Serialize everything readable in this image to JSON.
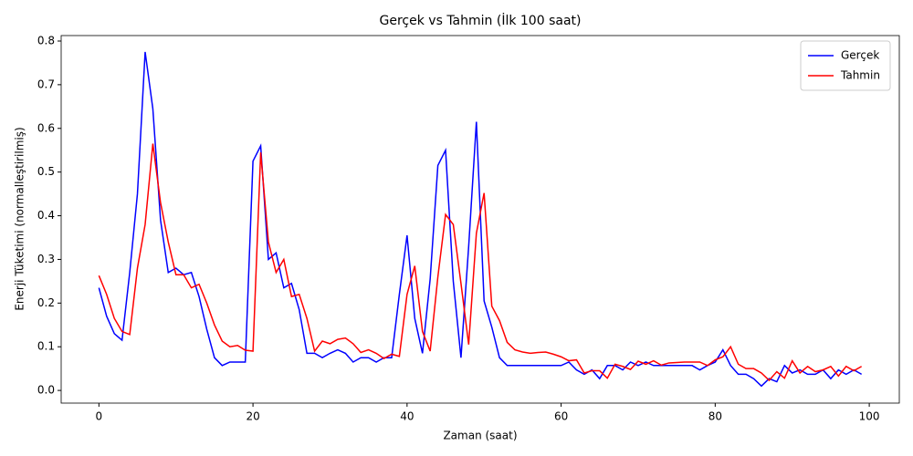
{
  "chart_data": {
    "type": "line",
    "title": "Gerçek vs Tahmin (İlk 100 saat)",
    "x_label": "Zaman (saat)",
    "y_label": "Enerji Tüketimi (normalleştirilmiş)",
    "x": [
      0,
      1,
      2,
      3,
      4,
      5,
      6,
      7,
      8,
      9,
      10,
      11,
      12,
      13,
      14,
      15,
      16,
      17,
      18,
      19,
      20,
      21,
      22,
      23,
      24,
      25,
      26,
      27,
      28,
      29,
      30,
      31,
      32,
      33,
      34,
      35,
      36,
      37,
      38,
      39,
      40,
      41,
      42,
      43,
      44,
      45,
      46,
      47,
      48,
      49,
      50,
      51,
      52,
      53,
      54,
      55,
      56,
      57,
      58,
      59,
      60,
      61,
      62,
      63,
      64,
      65,
      66,
      67,
      68,
      69,
      70,
      71,
      72,
      73,
      74,
      75,
      76,
      77,
      78,
      79,
      80,
      81,
      82,
      83,
      84,
      85,
      86,
      87,
      88,
      89,
      90,
      91,
      92,
      93,
      94,
      95,
      96,
      97,
      98,
      99
    ],
    "series": [
      {
        "name": "Gerçek",
        "color": "#0000ff",
        "values": [
          0.235,
          0.17,
          0.13,
          0.115,
          0.27,
          0.45,
          0.775,
          0.645,
          0.39,
          0.27,
          0.28,
          0.265,
          0.27,
          0.215,
          0.14,
          0.075,
          0.057,
          0.065,
          0.065,
          0.065,
          0.525,
          0.56,
          0.3,
          0.315,
          0.235,
          0.245,
          0.185,
          0.085,
          0.085,
          0.075,
          0.085,
          0.093,
          0.085,
          0.065,
          0.075,
          0.075,
          0.065,
          0.075,
          0.075,
          0.22,
          0.355,
          0.165,
          0.085,
          0.255,
          0.515,
          0.55,
          0.25,
          0.075,
          0.33,
          0.615,
          0.205,
          0.145,
          0.075,
          0.057,
          0.057,
          0.057,
          0.057,
          0.057,
          0.057,
          0.057,
          0.057,
          0.065,
          0.047,
          0.037,
          0.047,
          0.027,
          0.057,
          0.057,
          0.047,
          0.065,
          0.057,
          0.065,
          0.057,
          0.057,
          0.057,
          0.057,
          0.057,
          0.057,
          0.047,
          0.057,
          0.065,
          0.093,
          0.057,
          0.037,
          0.037,
          0.027,
          0.01,
          0.027,
          0.02,
          0.057,
          0.04,
          0.047,
          0.037,
          0.037,
          0.047,
          0.027,
          0.047,
          0.037,
          0.047,
          0.037
        ]
      },
      {
        "name": "Tahmin",
        "color": "#ff0000",
        "values": [
          0.263,
          0.22,
          0.165,
          0.135,
          0.128,
          0.28,
          0.38,
          0.565,
          0.43,
          0.34,
          0.265,
          0.265,
          0.235,
          0.243,
          0.2,
          0.15,
          0.113,
          0.1,
          0.103,
          0.092,
          0.09,
          0.545,
          0.34,
          0.27,
          0.3,
          0.215,
          0.22,
          0.165,
          0.09,
          0.113,
          0.107,
          0.117,
          0.12,
          0.107,
          0.087,
          0.093,
          0.085,
          0.073,
          0.083,
          0.078,
          0.22,
          0.285,
          0.135,
          0.09,
          0.26,
          0.403,
          0.38,
          0.245,
          0.105,
          0.36,
          0.452,
          0.193,
          0.16,
          0.11,
          0.093,
          0.088,
          0.085,
          0.087,
          0.088,
          0.083,
          0.077,
          0.068,
          0.07,
          0.04,
          0.045,
          0.045,
          0.028,
          0.06,
          0.055,
          0.048,
          0.067,
          0.06,
          0.068,
          0.058,
          0.063,
          0.064,
          0.065,
          0.065,
          0.065,
          0.057,
          0.07,
          0.077,
          0.1,
          0.06,
          0.05,
          0.05,
          0.04,
          0.023,
          0.043,
          0.028,
          0.068,
          0.04,
          0.055,
          0.043,
          0.047,
          0.055,
          0.033,
          0.055,
          0.045,
          0.055
        ]
      }
    ],
    "xlim": [
      -4.9,
      103.9
    ],
    "xticks": [
      0,
      20,
      40,
      60,
      80,
      100
    ],
    "ylim": [
      -0.029,
      0.8125
    ],
    "yticks": [
      {
        "value": 0,
        "label": "0.0"
      },
      0.1,
      0.2,
      0.3,
      0.4,
      0.5,
      0.6,
      0.7,
      0.8
    ],
    "legend": "upper right"
  }
}
